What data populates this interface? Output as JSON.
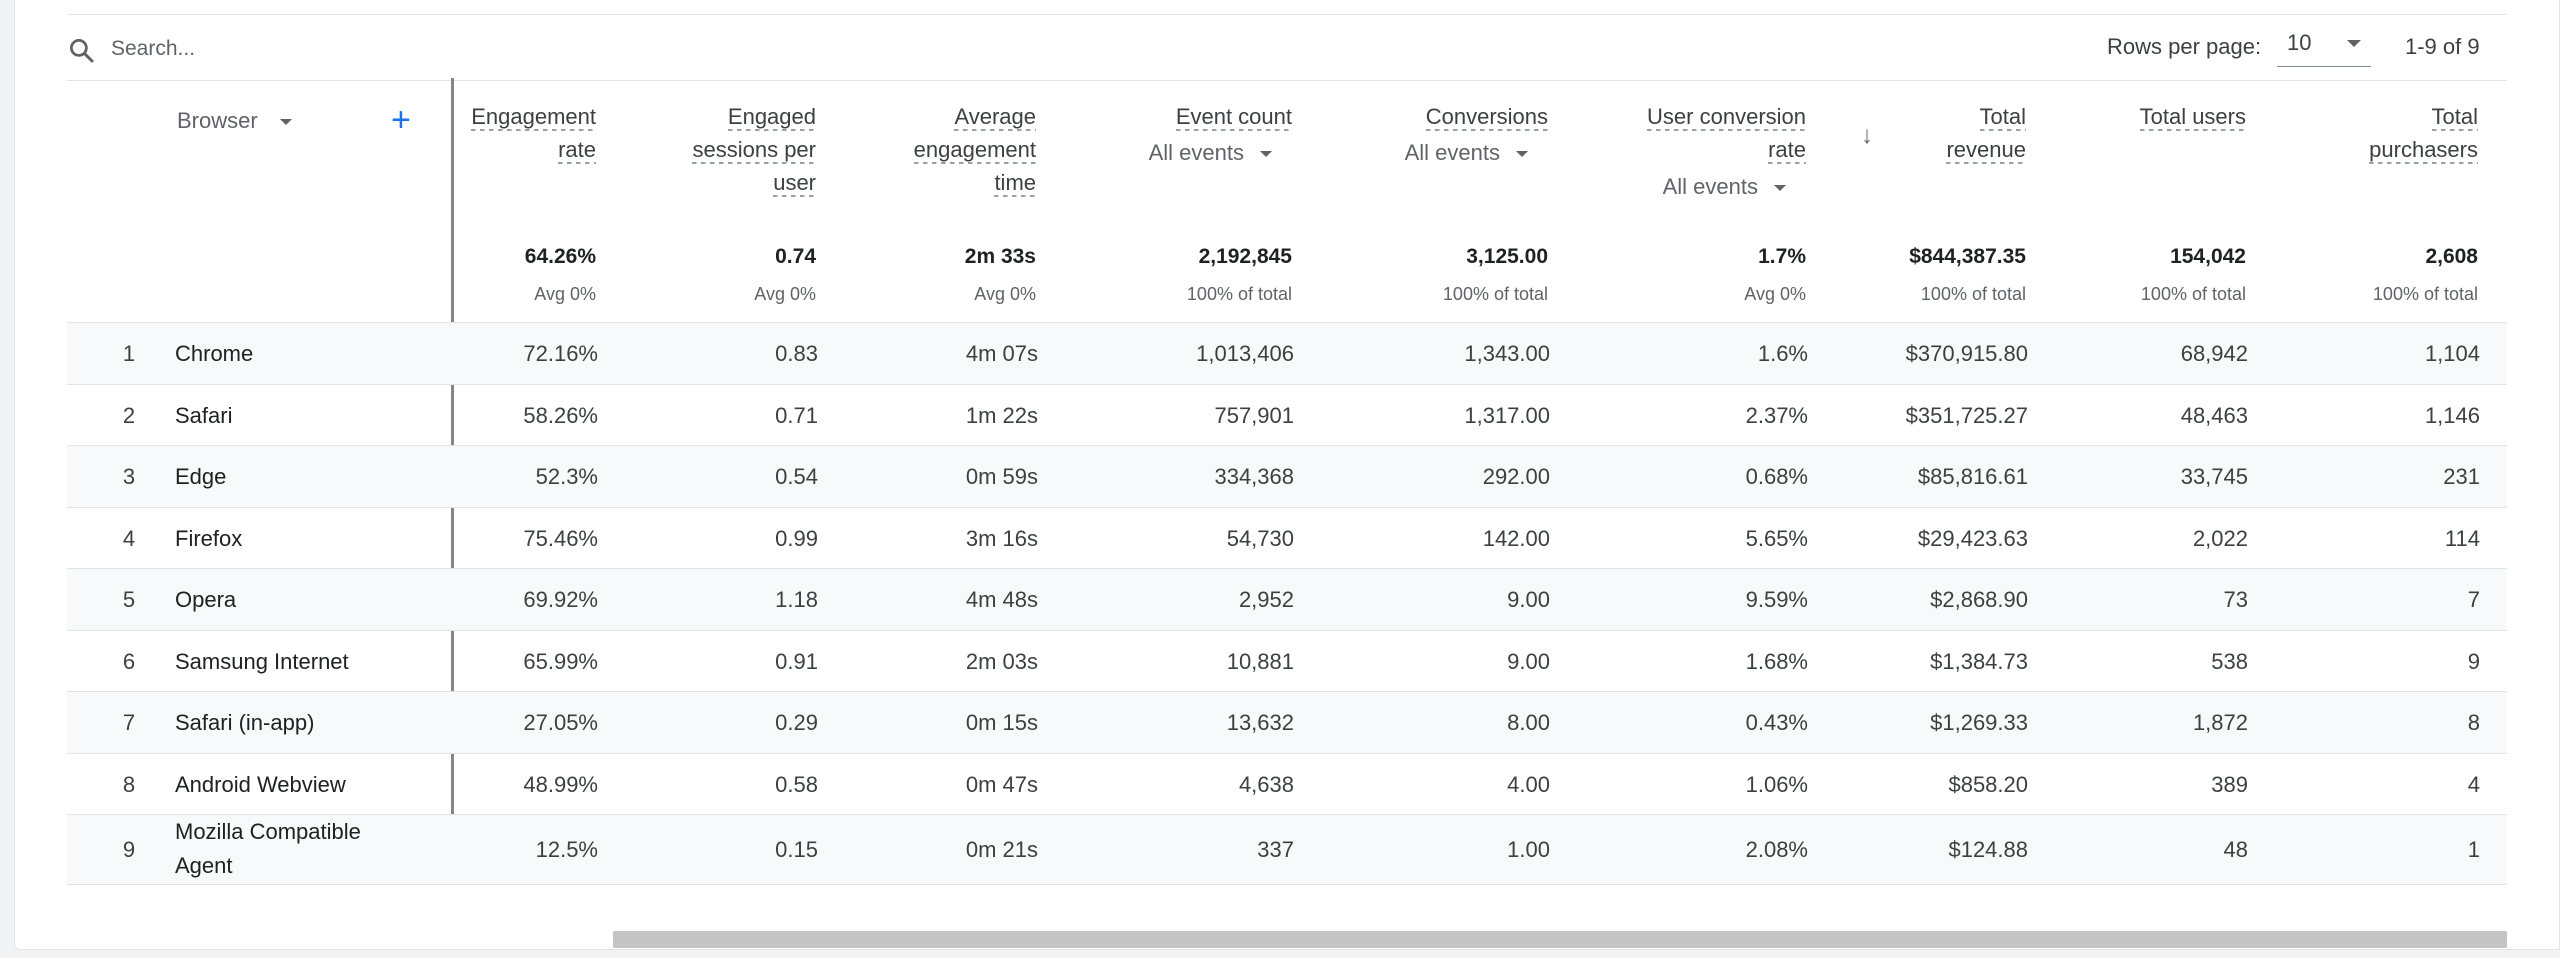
{
  "search": {
    "placeholder": "Search..."
  },
  "pagination": {
    "rows_label": "Rows per page:",
    "rows_value": "10",
    "range": "1-9 of 9"
  },
  "dimension": {
    "label": "Browser"
  },
  "columns": [
    {
      "id": "engagement_rate",
      "lines": [
        "Engagement",
        "rate"
      ],
      "total": "64.26%",
      "sub": "Avg 0%"
    },
    {
      "id": "engaged_sessions",
      "lines": [
        "Engaged",
        "sessions per",
        "user"
      ],
      "total": "0.74",
      "sub": "Avg 0%"
    },
    {
      "id": "avg_engagement",
      "lines": [
        "Average",
        "engagement",
        "time"
      ],
      "total": "2m 33s",
      "sub": "Avg 0%"
    },
    {
      "id": "event_count",
      "lines": [
        "Event count"
      ],
      "selector": "All events",
      "total": "2,192,845",
      "sub": "100% of total"
    },
    {
      "id": "conversions",
      "lines": [
        "Conversions"
      ],
      "selector": "All events",
      "total": "3,125.00",
      "sub": "100% of total"
    },
    {
      "id": "user_conversion",
      "lines": [
        "User conversion",
        "rate"
      ],
      "selector": "All events",
      "total": "1.7%",
      "sub": "Avg 0%"
    },
    {
      "id": "total_revenue",
      "lines": [
        "Total",
        "revenue"
      ],
      "total": "$844,387.35",
      "sub": "100% of total"
    },
    {
      "id": "total_users",
      "lines": [
        "Total users"
      ],
      "total": "154,042",
      "sub": "100% of total"
    },
    {
      "id": "total_purchasers",
      "lines": [
        "Total",
        "purchasers"
      ],
      "total": "2,608",
      "sub": "100% of total"
    }
  ],
  "rows": [
    {
      "idx": "1",
      "browser": "Chrome",
      "values": [
        "72.16%",
        "0.83",
        "4m 07s",
        "1,013,406",
        "1,343.00",
        "1.6%",
        "$370,915.80",
        "68,942",
        "1,104"
      ]
    },
    {
      "idx": "2",
      "browser": "Safari",
      "values": [
        "58.26%",
        "0.71",
        "1m 22s",
        "757,901",
        "1,317.00",
        "2.37%",
        "$351,725.27",
        "48,463",
        "1,146"
      ]
    },
    {
      "idx": "3",
      "browser": "Edge",
      "values": [
        "52.3%",
        "0.54",
        "0m 59s",
        "334,368",
        "292.00",
        "0.68%",
        "$85,816.61",
        "33,745",
        "231"
      ]
    },
    {
      "idx": "4",
      "browser": "Firefox",
      "values": [
        "75.46%",
        "0.99",
        "3m 16s",
        "54,730",
        "142.00",
        "5.65%",
        "$29,423.63",
        "2,022",
        "114"
      ]
    },
    {
      "idx": "5",
      "browser": "Opera",
      "values": [
        "69.92%",
        "1.18",
        "4m 48s",
        "2,952",
        "9.00",
        "9.59%",
        "$2,868.90",
        "73",
        "7"
      ]
    },
    {
      "idx": "6",
      "browser": "Samsung Internet",
      "values": [
        "65.99%",
        "0.91",
        "2m 03s",
        "10,881",
        "9.00",
        "1.68%",
        "$1,384.73",
        "538",
        "9"
      ]
    },
    {
      "idx": "7",
      "browser": "Safari (in-app)",
      "values": [
        "27.05%",
        "0.29",
        "0m 15s",
        "13,632",
        "8.00",
        "0.43%",
        "$1,269.33",
        "1,872",
        "8"
      ]
    },
    {
      "idx": "8",
      "browser": "Android Webview",
      "values": [
        "48.99%",
        "0.58",
        "0m 47s",
        "4,638",
        "4.00",
        "1.06%",
        "$858.20",
        "389",
        "4"
      ]
    },
    {
      "idx": "9",
      "browser": "Mozilla Compatible Agent",
      "values": [
        "12.5%",
        "0.15",
        "0m 21s",
        "337",
        "1.00",
        "2.08%",
        "$124.88",
        "48",
        "1"
      ]
    }
  ]
}
